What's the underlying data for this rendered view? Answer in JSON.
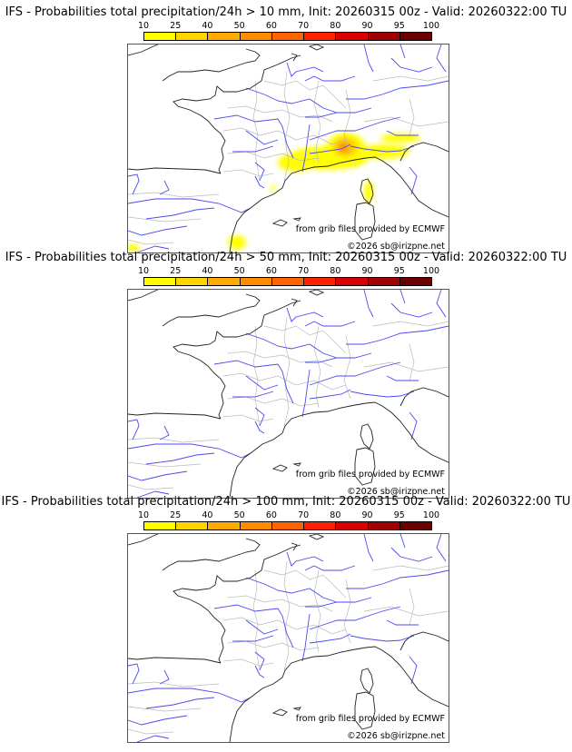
{
  "legend": {
    "ticks": [
      "10",
      "25",
      "40",
      "50",
      "60",
      "70",
      "80",
      "90",
      "95",
      "100"
    ],
    "colors": [
      "#ffff00",
      "#ffd500",
      "#ffaa00",
      "#ff8c00",
      "#ff6400",
      "#ff2000",
      "#d80000",
      "#a00000",
      "#6a0000"
    ]
  },
  "panels": [
    {
      "title": "IFS - Probabilities total precipitation/24h > 10 mm, Init: 20260315 00z - Valid: 20260322:00 TU",
      "threshold_mm": 10,
      "has_precip": true
    },
    {
      "title": "IFS - Probabilities total precipitation/24h > 50 mm, Init: 20260315 00z - Valid: 20260322:00 TU",
      "threshold_mm": 50,
      "has_precip": false
    },
    {
      "title": "IFS - Probabilities total precipitation/24h > 100 mm, Init: 20260315 00z - Valid: 20260322:00 TU",
      "threshold_mm": 100,
      "has_precip": false
    }
  ],
  "attribution": {
    "source": "from grib files provided by ECMWF",
    "copyright": "©2026 sb@irizpne.net"
  }
}
